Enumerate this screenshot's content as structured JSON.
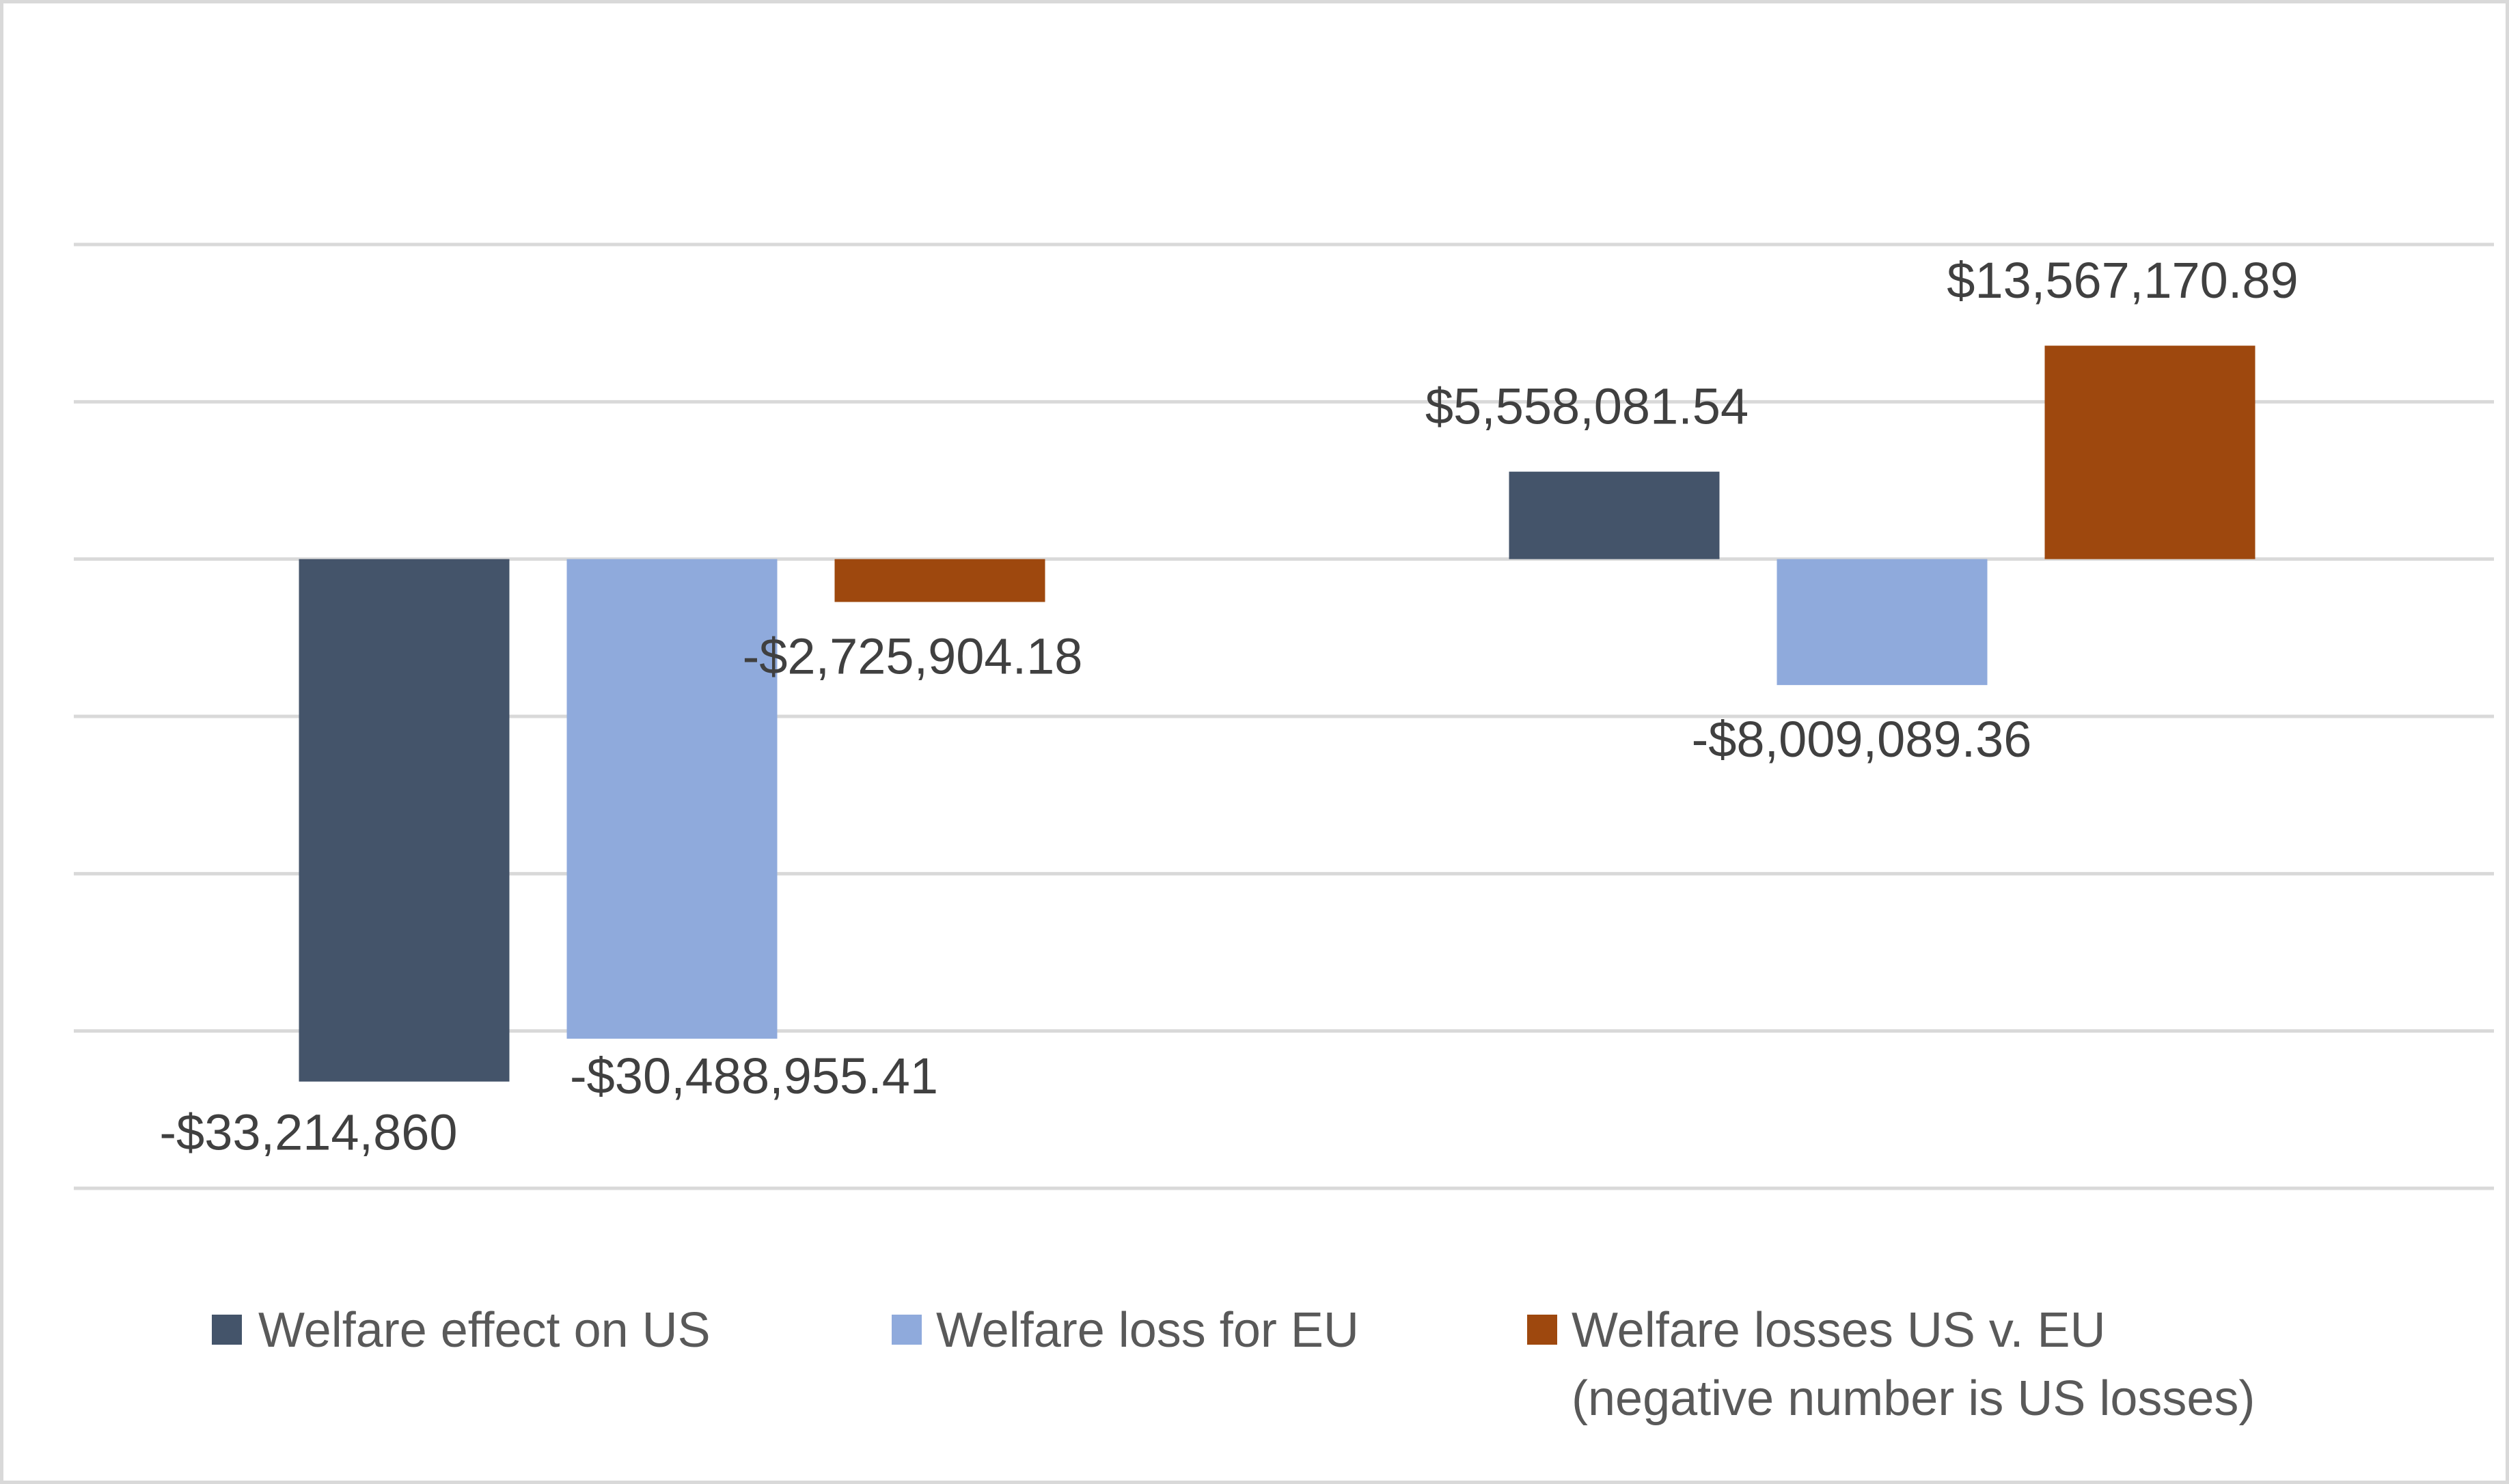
{
  "chart_data": {
    "type": "bar",
    "title": "",
    "xlabel": "",
    "ylabel": "",
    "categories": [
      "",
      ""
    ],
    "ylim": [
      -40000000,
      20000000
    ],
    "y_gridlines": [
      -40000000,
      -30000000,
      -20000000,
      -10000000,
      0,
      10000000,
      20000000
    ],
    "grid": true,
    "legend_position": "bottom",
    "series": [
      {
        "name": "Welfare effect on US",
        "color": "#44546a",
        "values": [
          -33214860,
          5558081.54
        ],
        "labels": [
          "-$33,214,860",
          "$5,558,081.54"
        ]
      },
      {
        "name": "Welfare loss for EU",
        "color": "#8faadc",
        "values": [
          -30488955.41,
          -8009089.36
        ],
        "labels": [
          "-$30,488,955.41",
          "-$8,009,089.36"
        ]
      },
      {
        "name": "Welfare losses US v. EU (negative number is US losses)",
        "color": "#9e480e",
        "values": [
          -2725904.18,
          13567170.89
        ],
        "labels": [
          "-$2,725,904.18",
          "$13,567,170.89"
        ]
      }
    ]
  },
  "legend": [
    {
      "line1": "Welfare effect on US",
      "line2": "",
      "color": "#44546a"
    },
    {
      "line1": "Welfare loss for EU",
      "line2": "",
      "color": "#8faadc"
    },
    {
      "line1": "Welfare losses US v. EU",
      "line2": "(negative number is US losses)",
      "color": "#9e480e"
    }
  ]
}
